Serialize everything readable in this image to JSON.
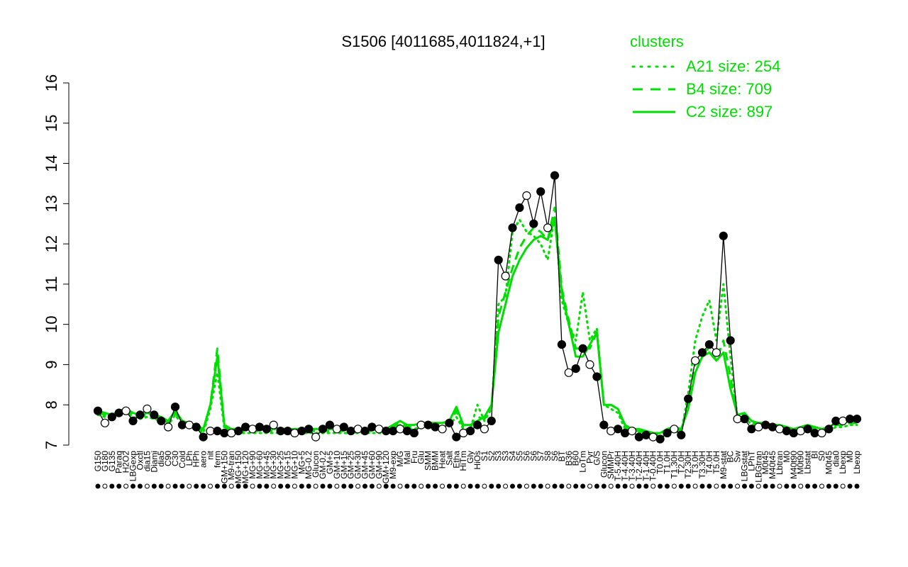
{
  "chart_data": {
    "type": "line",
    "title": "S1506 [4011685,4011824,+1]",
    "xlabel": "",
    "ylabel": "",
    "ylim": [
      7,
      16
    ],
    "yticks": [
      7,
      8,
      9,
      10,
      11,
      12,
      13,
      14,
      15,
      16
    ],
    "grid": false,
    "legend_position": "top-right",
    "legend": {
      "title": "clusters",
      "entries": [
        {
          "label": "A21 size: 254",
          "style": "dotted"
        },
        {
          "label": "B4 size: 709",
          "style": "dashed"
        },
        {
          "label": "C2 size: 897",
          "style": "solid"
        }
      ]
    },
    "colors": {
      "clusters": "#00dd00",
      "data": "#000000"
    },
    "x_tick_labels": [
      "G150",
      "G180",
      "G135",
      "Paraq",
      "H2O2",
      "LBGexp",
      "Oxctl",
      "dia15",
      "Diami",
      "dia5",
      "C90",
      "C30",
      "Cold",
      "LPh",
      "HPh",
      "aero",
      "nit",
      "ferm",
      "GM+150",
      "M9-tran",
      "MG+150",
      "MG+120",
      "MG+90",
      "MG+60",
      "MG+45",
      "MG+30",
      "MG+25",
      "MG+15",
      "MG+10",
      "MG+5",
      "MG-0.2",
      "Glucon",
      "GM-0.2",
      "GM+5",
      "GM+10",
      "GM+15",
      "GM+25",
      "GM+30",
      "GM+45",
      "GM+60",
      "GM+90",
      "GM+120",
      "M9-exp",
      "M/G",
      "Mal",
      "Fru",
      "Glu",
      "SMM",
      "BMM",
      "Heat",
      "Salt",
      "Etha",
      "HiTm",
      "Gly",
      "HiOs",
      "S1",
      "S2",
      "S3",
      "S3",
      "S4",
      "S5",
      "S6",
      "S6",
      "S7",
      "S8",
      "S6",
      "BT",
      "B36",
      "B60",
      "LoTm",
      "Pyr",
      "G/S",
      "Glucon",
      "SMMPr",
      "T-5.40H",
      "T-4.40H",
      "T-3.40H",
      "T-2.40H",
      "T-1.40H",
      "T-0.40H",
      "T0.0H",
      "T1.0H",
      "T1.30H",
      "T2.0H",
      "T2.30H",
      "T3.0H",
      "T3.30H",
      "T4.0H",
      "T5.0H",
      "M9-stat",
      "BC",
      "Sw",
      "LBGstat",
      "LPhT",
      "LBGtran",
      "M0t45",
      "M40t45",
      "Lbtran",
      "M0",
      "M40t90",
      "M0t90",
      "Lbstat",
      "BI",
      "S0",
      "M0t45",
      "dia0",
      "Lbexp",
      "M0",
      "Lbexp"
    ],
    "series": [
      {
        "values": [
          7.85,
          7.55,
          7.7,
          7.8,
          7.85,
          7.6,
          7.75,
          7.9,
          7.75,
          7.6,
          7.45,
          7.95,
          7.5,
          7.5,
          7.45,
          7.2,
          7.35,
          7.35,
          7.3,
          7.3,
          7.35,
          7.45,
          7.4,
          7.45,
          7.4,
          7.5,
          7.35,
          7.35,
          7.3,
          7.35,
          7.4,
          7.2,
          7.4,
          7.5,
          7.4,
          7.45,
          7.35,
          7.4,
          7.35,
          7.45,
          7.4,
          7.35,
          7.35,
          7.4,
          7.35,
          7.3,
          7.5,
          7.5,
          7.45,
          7.4,
          7.55,
          7.2,
          7.3,
          7.35,
          7.5,
          7.4,
          7.6,
          11.6,
          11.2,
          12.4,
          12.9,
          13.2,
          12.5,
          13.3,
          12.4,
          13.7,
          9.5,
          8.8,
          8.9,
          9.4,
          9.0,
          8.7,
          7.5,
          7.35,
          7.4,
          7.3,
          7.35,
          7.2,
          7.25,
          7.2,
          7.15,
          7.3,
          7.4,
          7.25,
          8.15,
          9.1,
          9.3,
          9.5,
          9.3,
          12.2,
          9.6,
          7.65,
          7.65,
          7.4,
          7.45,
          7.5,
          7.45,
          7.4,
          7.35,
          7.3,
          7.35,
          7.4,
          7.3,
          7.3,
          7.4,
          7.6,
          7.6,
          7.65,
          7.65
        ]
      },
      {
        "name": "A21 size: 254",
        "values": [
          7.75,
          7.7,
          7.65,
          7.75,
          7.8,
          7.7,
          7.65,
          7.7,
          7.65,
          7.6,
          7.5,
          7.75,
          7.5,
          7.45,
          7.4,
          7.3,
          7.9,
          8.8,
          7.4,
          7.3,
          7.3,
          7.3,
          7.3,
          7.3,
          7.3,
          7.3,
          7.3,
          7.3,
          7.3,
          7.3,
          7.3,
          7.3,
          7.3,
          7.3,
          7.3,
          7.3,
          7.3,
          7.3,
          7.3,
          7.3,
          7.3,
          7.3,
          7.4,
          7.5,
          7.4,
          7.4,
          7.45,
          7.45,
          7.45,
          7.45,
          7.5,
          7.7,
          7.4,
          7.4,
          8.0,
          7.6,
          7.9,
          10.5,
          10.7,
          12.3,
          12.6,
          12.3,
          12.2,
          12.0,
          11.6,
          12.7,
          10.6,
          10.0,
          9.6,
          10.8,
          9.6,
          9.9,
          8.0,
          7.9,
          7.8,
          7.4,
          7.3,
          7.3,
          7.25,
          7.2,
          7.2,
          7.3,
          7.35,
          7.3,
          8.3,
          9.6,
          10.2,
          10.6,
          9.6,
          11.0,
          9.2,
          7.7,
          7.7,
          7.5,
          7.45,
          7.45,
          7.4,
          7.4,
          7.35,
          7.3,
          7.35,
          7.4,
          7.35,
          7.3,
          7.35,
          7.45,
          7.45,
          7.5,
          7.5
        ]
      },
      {
        "name": "B4 size: 709",
        "values": [
          7.8,
          7.75,
          7.7,
          7.8,
          7.85,
          7.75,
          7.7,
          7.75,
          7.7,
          7.65,
          7.55,
          7.8,
          7.55,
          7.5,
          7.45,
          7.35,
          8.0,
          9.4,
          7.45,
          7.35,
          7.35,
          7.35,
          7.35,
          7.35,
          7.35,
          7.35,
          7.35,
          7.35,
          7.35,
          7.35,
          7.35,
          7.35,
          7.35,
          7.35,
          7.35,
          7.35,
          7.35,
          7.35,
          7.35,
          7.35,
          7.35,
          7.35,
          7.45,
          7.55,
          7.45,
          7.45,
          7.5,
          7.5,
          7.5,
          7.5,
          7.55,
          7.85,
          7.45,
          7.45,
          7.7,
          7.65,
          7.95,
          10.2,
          10.8,
          11.4,
          11.9,
          12.2,
          12.4,
          12.3,
          12.1,
          12.9,
          10.9,
          10.1,
          9.4,
          9.4,
          9.4,
          9.8,
          8.0,
          8.0,
          7.9,
          7.45,
          7.35,
          7.35,
          7.3,
          7.25,
          7.25,
          7.35,
          7.4,
          7.35,
          8.1,
          9.0,
          9.3,
          9.4,
          9.1,
          9.6,
          8.7,
          7.7,
          7.75,
          7.55,
          7.5,
          7.5,
          7.45,
          7.45,
          7.4,
          7.35,
          7.4,
          7.45,
          7.4,
          7.35,
          7.4,
          7.5,
          7.5,
          7.55,
          7.55
        ]
      },
      {
        "name": "C2 size: 897",
        "values": [
          7.85,
          7.8,
          7.75,
          7.85,
          7.9,
          7.8,
          7.75,
          7.8,
          7.75,
          7.7,
          7.6,
          7.85,
          7.6,
          7.55,
          7.5,
          7.4,
          8.0,
          9.2,
          7.5,
          7.4,
          7.4,
          7.4,
          7.4,
          7.4,
          7.4,
          7.4,
          7.4,
          7.4,
          7.4,
          7.4,
          7.4,
          7.4,
          7.4,
          7.4,
          7.4,
          7.4,
          7.4,
          7.4,
          7.4,
          7.4,
          7.4,
          7.4,
          7.5,
          7.6,
          7.5,
          7.5,
          7.55,
          7.55,
          7.55,
          7.55,
          7.6,
          7.95,
          7.5,
          7.5,
          7.6,
          7.7,
          8.0,
          9.8,
          10.5,
          11.2,
          11.6,
          11.9,
          12.1,
          12.2,
          12.1,
          12.6,
          10.8,
          10.0,
          9.2,
          9.2,
          9.5,
          9.8,
          8.0,
          8.0,
          7.9,
          7.5,
          7.4,
          7.4,
          7.35,
          7.3,
          7.3,
          7.4,
          7.45,
          7.4,
          7.9,
          8.8,
          9.2,
          9.3,
          9.1,
          9.3,
          8.4,
          7.75,
          7.8,
          7.6,
          7.55,
          7.55,
          7.5,
          7.5,
          7.45,
          7.4,
          7.45,
          7.5,
          7.45,
          7.4,
          7.45,
          7.55,
          7.55,
          7.6,
          7.6
        ]
      }
    ]
  }
}
